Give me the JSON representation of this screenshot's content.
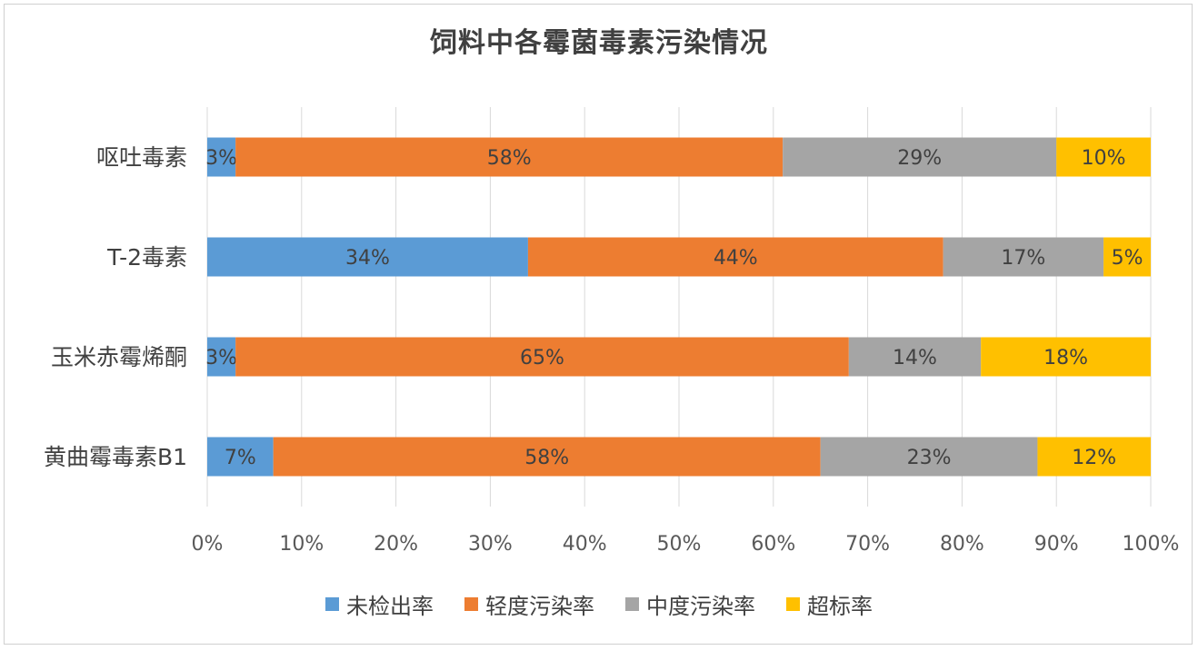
{
  "chart_data": {
    "type": "bar",
    "orientation": "horizontal",
    "stacked": true,
    "title": "饲料中各霉菌毒素污染情况",
    "categories": [
      "呕吐毒素",
      "T-2毒素",
      "玉米赤霉烯酮",
      "黄曲霉毒素B1"
    ],
    "series": [
      {
        "name": "未检出率",
        "color": "#5b9bd5",
        "values": [
          3,
          34,
          3,
          7
        ]
      },
      {
        "name": "轻度污染率",
        "color": "#ed7d31",
        "values": [
          58,
          44,
          65,
          58
        ]
      },
      {
        "name": "中度污染率",
        "color": "#a5a5a5",
        "values": [
          29,
          17,
          14,
          23
        ]
      },
      {
        "name": "超标率",
        "color": "#ffc000",
        "values": [
          10,
          5,
          18,
          12
        ]
      }
    ],
    "data_labels": [
      [
        "3%",
        "34%",
        "3%",
        "7%"
      ],
      [
        "58%",
        "44%",
        "65%",
        "58%"
      ],
      [
        "29%",
        "17%",
        "14%",
        "23%"
      ],
      [
        "10%",
        "5%",
        "18%",
        "12%"
      ]
    ],
    "xlim": [
      0,
      100
    ],
    "x_ticks": [
      "0%",
      "10%",
      "20%",
      "30%",
      "40%",
      "50%",
      "60%",
      "70%",
      "80%",
      "90%",
      "100%"
    ],
    "grid": true,
    "legend_position": "bottom"
  }
}
